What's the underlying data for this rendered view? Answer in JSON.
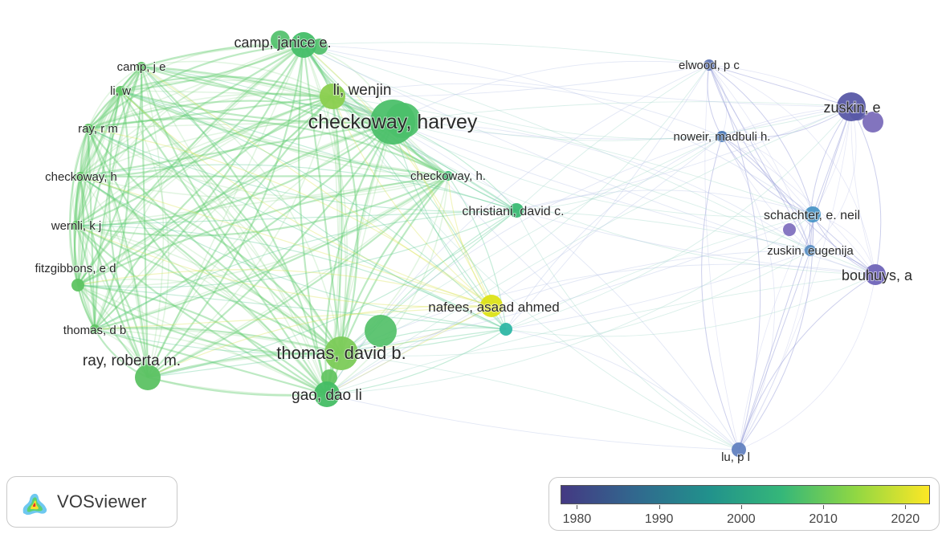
{
  "app": {
    "name": "VOSviewer"
  },
  "legend": {
    "ticks": [
      "1980",
      "1990",
      "2000",
      "2010",
      "2020"
    ],
    "year_min": 1978,
    "year_max": 2023,
    "colormap": [
      "#443983",
      "#31688e",
      "#21918c",
      "#35b779",
      "#90d743",
      "#fde725"
    ]
  },
  "network": {
    "nodes": [
      {
        "id": "checkoway_harvey",
        "label": "checkoway, harvey",
        "year": 2004,
        "weight": 10,
        "color": "#4cc06a"
      },
      {
        "id": "thomas_david_b",
        "label": "thomas, david b.",
        "year": 2006,
        "weight": 8,
        "color": "#7ccb58"
      },
      {
        "id": "ray_roberta_m",
        "label": "ray, roberta m.",
        "year": 2005,
        "weight": 6,
        "color": "#5cc263"
      },
      {
        "id": "gao_dao_li",
        "label": "gao, dao li",
        "year": 2004,
        "weight": 6,
        "color": "#44bd64"
      },
      {
        "id": "li_wenjin",
        "label": "li, wenjin",
        "year": 2010,
        "weight": 6,
        "color": "#8bcf4f"
      },
      {
        "id": "camp_janice_e",
        "label": "camp, janice e.",
        "year": 2003,
        "weight": 6,
        "color": "#45be68"
      },
      {
        "id": "camp_j_e",
        "label": "camp, j e",
        "year": 2004,
        "weight": 3,
        "color": "#5ec462"
      },
      {
        "id": "li_w",
        "label": "li, w",
        "year": 2004,
        "weight": 3,
        "color": "#5ec462"
      },
      {
        "id": "ray_r_m",
        "label": "ray, r m",
        "year": 2004,
        "weight": 3,
        "color": "#5ec462"
      },
      {
        "id": "checkoway_h",
        "label": "checkoway, h",
        "year": 2004,
        "weight": 3,
        "color": "#5ec462"
      },
      {
        "id": "wernli_k_j",
        "label": "wernli, k j",
        "year": 2004,
        "weight": 3,
        "color": "#5ec462"
      },
      {
        "id": "fitzgibbons_e_d",
        "label": "fitzgibbons, e d",
        "year": 2004,
        "weight": 3,
        "color": "#5ec462"
      },
      {
        "id": "thomas_d_b",
        "label": "thomas, d b",
        "year": 2004,
        "weight": 3,
        "color": "#5ec462"
      },
      {
        "id": "checkoway_h2",
        "label": "checkoway, h.",
        "year": 2003,
        "weight": 3,
        "color": "#3dbb70"
      },
      {
        "id": "christiani_david_c",
        "label": "christiani, david c.",
        "year": 2001,
        "weight": 4,
        "color": "#3bbb74"
      },
      {
        "id": "nafees_asaad_ahmed",
        "label": "nafees, asaad ahmed",
        "year": 2020,
        "weight": 6,
        "color": "#dde318"
      },
      {
        "id": "hub_teal",
        "label": "",
        "year": 1995,
        "weight": 3,
        "color": "#2fb7a5"
      },
      {
        "id": "elwood_p_c",
        "label": "elwood, p c",
        "year": 1984,
        "weight": 3,
        "color": "#5d74b3"
      },
      {
        "id": "zuskin_e",
        "label": "zuskin, e",
        "year": 1979,
        "weight": 7,
        "color": "#5858a6"
      },
      {
        "id": "noweir_madbuli_h",
        "label": "noweir, madbuli h.",
        "year": 1986,
        "weight": 3,
        "color": "#4a78b6"
      },
      {
        "id": "schachter_e_neil",
        "label": "schachter, e. neil",
        "year": 1992,
        "weight": 4,
        "color": "#4a95c6"
      },
      {
        "id": "zuskin_eugenija",
        "label": "zuskin, eugenija",
        "year": 1990,
        "weight": 3,
        "color": "#5b8fc4"
      },
      {
        "id": "bouhuys_a",
        "label": "bouhuys, a",
        "year": 1979,
        "weight": 5,
        "color": "#6f64b8"
      },
      {
        "id": "lu_p_l",
        "label": "lu, p l",
        "year": 1986,
        "weight": 4,
        "color": "#6382c0"
      }
    ]
  }
}
